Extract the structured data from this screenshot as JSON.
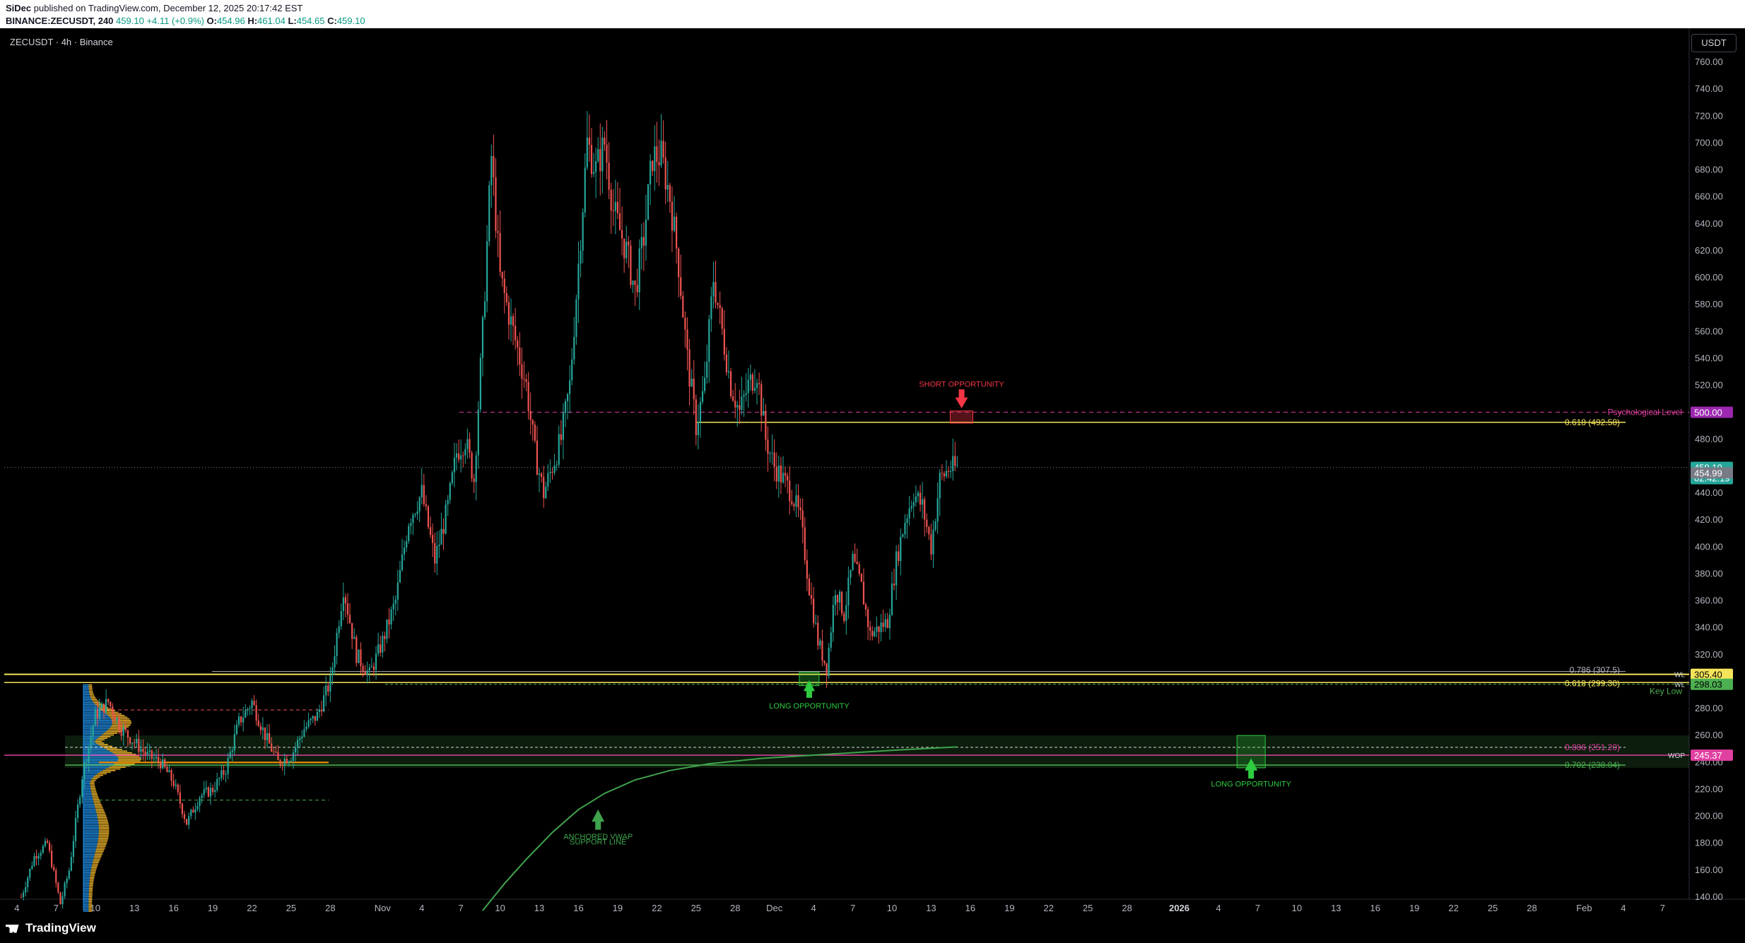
{
  "header": {
    "publisher": "SiDec",
    "published_text": "published on TradingView.com, December 12, 2025 20:17:42 EST",
    "symbol_line": "BINANCE:ZECUSDT, 240",
    "last": "459.10",
    "change": "+4.11 (+0.9%)",
    "o_label": "O:",
    "o": "454.96",
    "h_label": "H:",
    "h": "461.04",
    "l_label": "L:",
    "l": "454.65",
    "c_label": "C:",
    "c": "459.10"
  },
  "chart_label": "ZECUSDT · 4h · Binance",
  "currency": "USDT",
  "footer": {
    "logo": "TradingView"
  },
  "colors": {
    "up": "#26a69a",
    "down": "#ef5350",
    "accent_yellow": "#f6e55a",
    "fib_green": "#4caf50",
    "vwap": "#3fa34d",
    "psych": "#e040a0",
    "short": "#f23645",
    "long": "#2ecc40"
  },
  "chart_data": {
    "type": "candlestick",
    "ylim": [
      125,
      770
    ],
    "y_ticks": [
      140,
      160,
      180,
      200,
      220,
      240,
      260,
      280,
      300,
      320,
      340,
      360,
      380,
      400,
      420,
      440,
      460,
      480,
      500,
      520,
      540,
      560,
      580,
      600,
      620,
      640,
      660,
      680,
      700,
      720,
      740,
      760
    ],
    "x_ticks": [
      {
        "label": "4",
        "i": -2
      },
      {
        "label": "7",
        "i": 16
      },
      {
        "label": "10",
        "i": 34
      },
      {
        "label": "13",
        "i": 52
      },
      {
        "label": "16",
        "i": 70
      },
      {
        "label": "19",
        "i": 88
      },
      {
        "label": "22",
        "i": 106
      },
      {
        "label": "25",
        "i": 124
      },
      {
        "label": "28",
        "i": 142
      },
      {
        "label": "Nov",
        "i": 166
      },
      {
        "label": "4",
        "i": 184
      },
      {
        "label": "7",
        "i": 202
      },
      {
        "label": "10",
        "i": 220
      },
      {
        "label": "13",
        "i": 238
      },
      {
        "label": "16",
        "i": 256
      },
      {
        "label": "19",
        "i": 274
      },
      {
        "label": "22",
        "i": 292
      },
      {
        "label": "25",
        "i": 310
      },
      {
        "label": "28",
        "i": 328
      },
      {
        "label": "Dec",
        "i": 346
      },
      {
        "label": "4",
        "i": 364
      },
      {
        "label": "7",
        "i": 382
      },
      {
        "label": "10",
        "i": 400
      },
      {
        "label": "13",
        "i": 418
      },
      {
        "label": "16",
        "i": 436
      },
      {
        "label": "19",
        "i": 454
      },
      {
        "label": "22",
        "i": 472
      },
      {
        "label": "25",
        "i": 490
      },
      {
        "label": "28",
        "i": 508
      },
      {
        "label": "2026",
        "i": 532
      },
      {
        "label": "4",
        "i": 550
      },
      {
        "label": "7",
        "i": 568
      },
      {
        "label": "10",
        "i": 586
      },
      {
        "label": "13",
        "i": 604
      },
      {
        "label": "16",
        "i": 622
      },
      {
        "label": "19",
        "i": 640
      },
      {
        "label": "22",
        "i": 658
      },
      {
        "label": "25",
        "i": 676
      },
      {
        "label": "28",
        "i": 694
      },
      {
        "label": "Feb",
        "i": 718
      },
      {
        "label": "4",
        "i": 736
      },
      {
        "label": "7",
        "i": 754
      }
    ],
    "price_path": [
      [
        0,
        140
      ],
      [
        6,
        170
      ],
      [
        12,
        180
      ],
      [
        18,
        135
      ],
      [
        22,
        160
      ],
      [
        28,
        230
      ],
      [
        34,
        275
      ],
      [
        40,
        285
      ],
      [
        46,
        265
      ],
      [
        52,
        255
      ],
      [
        58,
        245
      ],
      [
        64,
        240
      ],
      [
        70,
        225
      ],
      [
        76,
        195
      ],
      [
        82,
        215
      ],
      [
        88,
        220
      ],
      [
        94,
        235
      ],
      [
        100,
        270
      ],
      [
        106,
        285
      ],
      [
        112,
        260
      ],
      [
        118,
        240
      ],
      [
        124,
        245
      ],
      [
        130,
        265
      ],
      [
        136,
        275
      ],
      [
        142,
        300
      ],
      [
        148,
        370
      ],
      [
        154,
        320
      ],
      [
        160,
        305
      ],
      [
        166,
        330
      ],
      [
        172,
        360
      ],
      [
        178,
        420
      ],
      [
        184,
        440
      ],
      [
        190,
        390
      ],
      [
        196,
        430
      ],
      [
        200,
        470
      ],
      [
        204,
        480
      ],
      [
        208,
        450
      ],
      [
        212,
        560
      ],
      [
        216,
        690
      ],
      [
        220,
        600
      ],
      [
        226,
        560
      ],
      [
        232,
        520
      ],
      [
        236,
        470
      ],
      [
        240,
        440
      ],
      [
        244,
        460
      ],
      [
        248,
        480
      ],
      [
        252,
        520
      ],
      [
        256,
        610
      ],
      [
        260,
        700
      ],
      [
        264,
        680
      ],
      [
        268,
        700
      ],
      [
        272,
        650
      ],
      [
        278,
        620
      ],
      [
        282,
        590
      ],
      [
        286,
        630
      ],
      [
        290,
        690
      ],
      [
        294,
        690
      ],
      [
        298,
        660
      ],
      [
        302,
        610
      ],
      [
        306,
        540
      ],
      [
        310,
        490
      ],
      [
        314,
        520
      ],
      [
        318,
        600
      ],
      [
        322,
        560
      ],
      [
        326,
        520
      ],
      [
        330,
        500
      ],
      [
        334,
        520
      ],
      [
        338,
        530
      ],
      [
        342,
        480
      ],
      [
        346,
        460
      ],
      [
        350,
        450
      ],
      [
        354,
        440
      ],
      [
        358,
        420
      ],
      [
        362,
        370
      ],
      [
        366,
        330
      ],
      [
        370,
        310
      ],
      [
        374,
        370
      ],
      [
        378,
        350
      ],
      [
        382,
        390
      ],
      [
        386,
        370
      ],
      [
        390,
        335
      ],
      [
        394,
        340
      ],
      [
        398,
        345
      ],
      [
        402,
        390
      ],
      [
        406,
        420
      ],
      [
        410,
        440
      ],
      [
        414,
        430
      ],
      [
        418,
        400
      ],
      [
        422,
        450
      ],
      [
        426,
        458
      ],
      [
        430,
        459
      ]
    ],
    "horizontal_levels": [
      {
        "label": "Psychological Level",
        "price": 500.0,
        "tag": "500.00"
      },
      {
        "label": "0.618 (492.58)",
        "price": 492.58
      },
      {
        "label": "459.10",
        "price": 459.1,
        "sub": "02:42:19"
      },
      {
        "label": "454.99",
        "price": 454.99
      },
      {
        "label": "0.786 (307.5)",
        "price": 307.5
      },
      {
        "label": "WL",
        "price": 305.4,
        "tag": "305.40"
      },
      {
        "label": "0.618 (299.30)",
        "price": 299.3
      },
      {
        "label": "WL",
        "price": 298.03,
        "tag": "298.03"
      },
      {
        "label": "Key Low",
        "price": 294
      },
      {
        "label": "0.886 (251.20)",
        "price": 251.2
      },
      {
        "label": "WOP",
        "price": 245.37,
        "tag": "245.37"
      },
      {
        "label": "0.702 (238.04)",
        "price": 238.04
      }
    ],
    "annotations": [
      {
        "text": "SHORT OPPORTUNITY",
        "i": 432,
        "price": 518
      },
      {
        "text": "LONG OPPORTUNITY",
        "i": 362,
        "price": 279
      },
      {
        "text": "LONG OPPORTUNITY",
        "i": 565,
        "price": 231
      },
      {
        "text": "ANCHORED VWAP",
        "i": 265,
        "price": 182
      },
      {
        "text": "SUPPORT LINE",
        "i": 265,
        "price": 177
      }
    ]
  }
}
